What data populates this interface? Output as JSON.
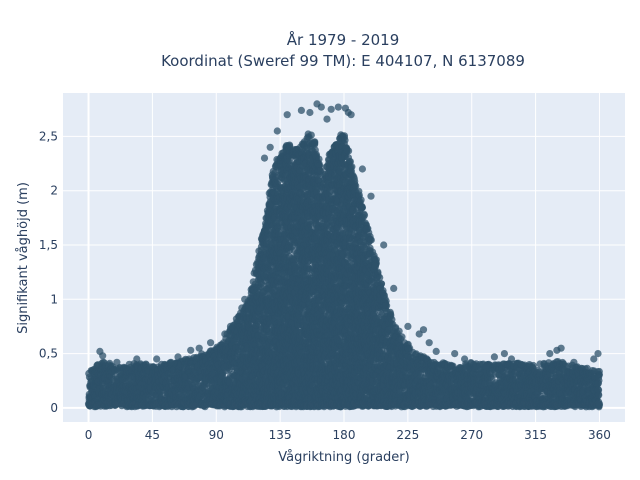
{
  "chart_data": {
    "type": "scatter",
    "title_lines": [
      "År 1979 - 2019",
      "Koordinat (Sweref 99 TM): E 404107, N 6137089"
    ],
    "xlabel": "Vågriktning (grader)",
    "ylabel": "Signifikant våghöjd (m)",
    "xlim": [
      -18,
      378
    ],
    "ylim": [
      -0.13,
      2.9
    ],
    "x_ticks": [
      0,
      45,
      90,
      135,
      180,
      225,
      270,
      315,
      360
    ],
    "x_tick_labels": [
      "0",
      "45",
      "90",
      "135",
      "180",
      "225",
      "270",
      "315",
      "360"
    ],
    "y_ticks": [
      0,
      0.5,
      1,
      1.5,
      2,
      2.5
    ],
    "y_tick_labels": [
      "0",
      "0,5",
      "1",
      "1,5",
      "2",
      "2,5"
    ],
    "grid": true,
    "legend": false,
    "point_color": "#2e5169",
    "plot_bg_color": "#e5ecf6",
    "envelope": {
      "direction_deg": [
        0,
        10,
        20,
        30,
        45,
        60,
        75,
        90,
        100,
        110,
        115,
        120,
        125,
        130,
        135,
        140,
        145,
        150,
        155,
        160,
        165,
        170,
        175,
        180,
        185,
        190,
        195,
        200,
        205,
        210,
        215,
        220,
        225,
        230,
        240,
        255,
        270,
        285,
        300,
        315,
        330,
        345,
        360
      ],
      "max_height_m": [
        0.32,
        0.45,
        0.38,
        0.42,
        0.4,
        0.42,
        0.48,
        0.55,
        0.75,
        0.95,
        1.15,
        1.45,
        1.8,
        2.25,
        2.45,
        2.5,
        2.45,
        2.5,
        2.65,
        2.5,
        2.2,
        2.4,
        2.55,
        2.6,
        2.3,
        2.05,
        1.8,
        1.55,
        1.25,
        1.0,
        0.82,
        0.7,
        0.6,
        0.52,
        0.45,
        0.4,
        0.42,
        0.4,
        0.42,
        0.4,
        0.45,
        0.38,
        0.35
      ]
    },
    "outliers": [
      {
        "x": 161,
        "y": 2.8
      },
      {
        "x": 164,
        "y": 2.77
      },
      {
        "x": 171,
        "y": 2.75
      },
      {
        "x": 176,
        "y": 2.77
      },
      {
        "x": 181,
        "y": 2.76
      },
      {
        "x": 183,
        "y": 2.72
      },
      {
        "x": 185,
        "y": 2.7
      },
      {
        "x": 140,
        "y": 2.7
      },
      {
        "x": 150,
        "y": 2.74
      },
      {
        "x": 156,
        "y": 2.72
      },
      {
        "x": 168,
        "y": 2.66
      },
      {
        "x": 133,
        "y": 2.55
      },
      {
        "x": 128,
        "y": 2.4
      },
      {
        "x": 124,
        "y": 2.3
      },
      {
        "x": 193,
        "y": 2.2
      },
      {
        "x": 199,
        "y": 1.95
      },
      {
        "x": 208,
        "y": 1.5
      },
      {
        "x": 215,
        "y": 1.1
      },
      {
        "x": 110,
        "y": 1.0
      },
      {
        "x": 108,
        "y": 0.92
      },
      {
        "x": 225,
        "y": 0.75
      },
      {
        "x": 233,
        "y": 0.68
      },
      {
        "x": 240,
        "y": 0.6
      },
      {
        "x": 245,
        "y": 0.52
      },
      {
        "x": 258,
        "y": 0.5
      },
      {
        "x": 265,
        "y": 0.45
      },
      {
        "x": 286,
        "y": 0.47
      },
      {
        "x": 293,
        "y": 0.5
      },
      {
        "x": 298,
        "y": 0.45
      },
      {
        "x": 325,
        "y": 0.5
      },
      {
        "x": 330,
        "y": 0.53
      },
      {
        "x": 333,
        "y": 0.55
      },
      {
        "x": 356,
        "y": 0.45
      },
      {
        "x": 359,
        "y": 0.5
      },
      {
        "x": 8,
        "y": 0.52
      },
      {
        "x": 10,
        "y": 0.48
      },
      {
        "x": 48,
        "y": 0.45
      },
      {
        "x": 72,
        "y": 0.53
      },
      {
        "x": 78,
        "y": 0.55
      },
      {
        "x": 86,
        "y": 0.6
      },
      {
        "x": 96,
        "y": 0.68
      },
      {
        "x": 100,
        "y": 0.75
      },
      {
        "x": 236,
        "y": 0.72
      },
      {
        "x": 280,
        "y": 0.38
      },
      {
        "x": 305,
        "y": 0.4
      },
      {
        "x": 342,
        "y": 0.42
      },
      {
        "x": 20,
        "y": 0.42
      },
      {
        "x": 34,
        "y": 0.45
      },
      {
        "x": 58,
        "y": 0.42
      },
      {
        "x": 63,
        "y": 0.47
      }
    ]
  }
}
